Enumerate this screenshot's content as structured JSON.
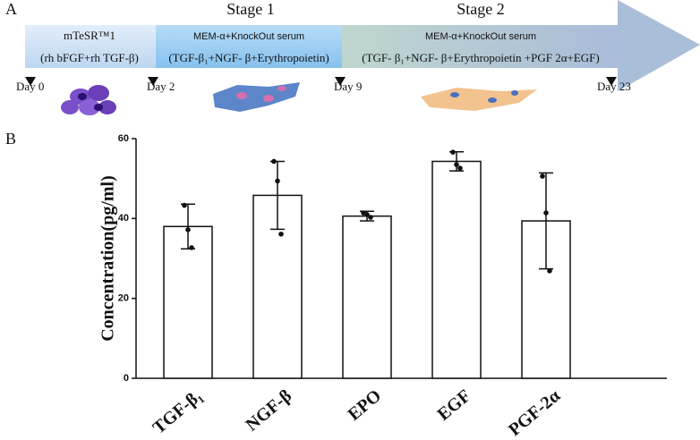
{
  "panel_a": {
    "label": "A",
    "stages": [
      "Stage 1",
      "Stage 2"
    ],
    "boxes": [
      {
        "line1": "mTeSR™1",
        "line2": "(rh bFGF+rh TGF-β)"
      },
      {
        "line1": "MEM-α+KnockOut serum",
        "line2": "(TGF-β₁+NGF- β+Erythropoietin)"
      },
      {
        "line1": "MEM-α+KnockOut serum",
        "line2": "(TGF- β₁+NGF- β+Erythropoietin +PGF 2α+EGF)"
      }
    ],
    "days": [
      "Day 0",
      "Day 2",
      "Day 9",
      "Day 23"
    ]
  },
  "chart_data": {
    "type": "bar",
    "panel_label": "B",
    "ylabel": "Concentration(pg/ml)",
    "categories": [
      "TGF-β₁",
      "NGF-β",
      "EPO",
      "EGF",
      "PGF-2α"
    ],
    "values": [
      38,
      45.8,
      40.6,
      54.3,
      39.4
    ],
    "errors": [
      5.6,
      8.5,
      1.2,
      2.4,
      12
    ],
    "points": [
      [
        43.3,
        37.2,
        32.7
      ],
      [
        54.3,
        49.4,
        36.1
      ],
      [
        41.4,
        41,
        40.3
      ],
      [
        56.6,
        53.5,
        52.6
      ],
      [
        50.6,
        41.4,
        26.9
      ]
    ],
    "color": "#ffffff",
    "ylim": [
      0,
      60
    ],
    "yticks": [
      0,
      20,
      40,
      60
    ]
  }
}
